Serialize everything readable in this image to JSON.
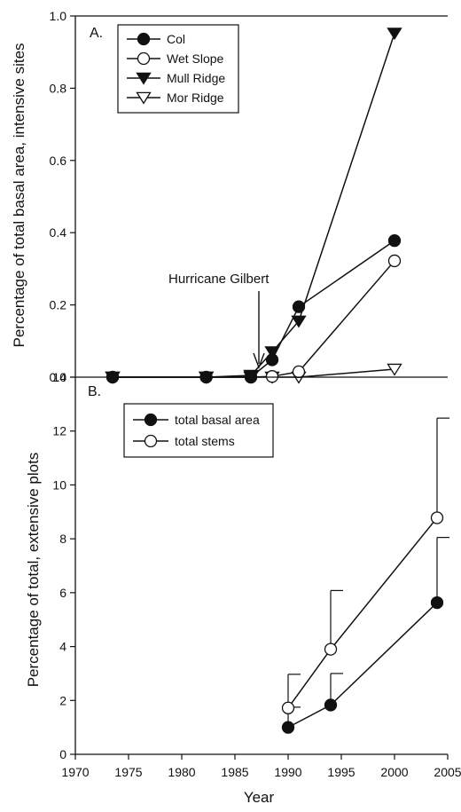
{
  "chart_data": [
    {
      "panel": "A.",
      "type": "line",
      "ylabel": "Percentage of total basal area, intensive sites",
      "xlim": [
        1970,
        2005
      ],
      "ylim": [
        0.0,
        1.0
      ],
      "yticks": [
        "0.0",
        "0.2",
        "0.4",
        "0.6",
        "0.8",
        "1.0"
      ],
      "legend_position": "top-left",
      "annotation": {
        "text": "Hurricane Gilbert",
        "x": 1988
      },
      "series": [
        {
          "name": "Col",
          "marker": "filled-circle",
          "x": [
            1973.5,
            1982.3,
            1986.5,
            1988.5,
            1991,
            2000
          ],
          "y": [
            0,
            0,
            0,
            0.048,
            0.195,
            0.378
          ]
        },
        {
          "name": "Wet Slope",
          "marker": "open-circle",
          "x": [
            1973.5,
            1982.3,
            1986.5,
            1988.5,
            1991,
            2000
          ],
          "y": [
            0,
            0,
            0,
            0.002,
            0.015,
            0.322
          ]
        },
        {
          "name": "Mull Ridge",
          "marker": "filled-triangle-down",
          "x": [
            1973.5,
            1982.3,
            1986.5,
            1988.5,
            1991,
            2000
          ],
          "y": [
            0,
            0,
            0.005,
            0.07,
            0.155,
            0.952
          ]
        },
        {
          "name": "Mor Ridge",
          "marker": "open-triangle-down",
          "x": [
            1973.5,
            1982.3,
            1986.5,
            1988.5,
            1991,
            2000
          ],
          "y": [
            0,
            0,
            0,
            0,
            0,
            0.022
          ]
        }
      ]
    },
    {
      "panel": "B.",
      "type": "line",
      "xlabel": "Year",
      "ylabel": "Percentage of total, extensive plots",
      "xlim": [
        1970,
        2005
      ],
      "ylim": [
        0,
        14
      ],
      "xticks": [
        "1970",
        "1975",
        "1980",
        "1985",
        "1990",
        "1995",
        "2000",
        "2005"
      ],
      "yticks": [
        "0",
        "2",
        "4",
        "6",
        "8",
        "10",
        "12",
        "14"
      ],
      "legend_position": "top-left",
      "series": [
        {
          "name": "total basal area",
          "marker": "filled-circle",
          "x": [
            1990,
            1994,
            2004
          ],
          "y": [
            1.0,
            1.83,
            5.63
          ],
          "error_upper": [
            1.75,
            3.0,
            8.05
          ]
        },
        {
          "name": "total stems",
          "marker": "open-circle",
          "x": [
            1990,
            1994,
            2004
          ],
          "y": [
            1.72,
            3.9,
            8.78
          ],
          "error_upper": [
            2.97,
            6.08,
            12.48
          ]
        }
      ]
    }
  ]
}
